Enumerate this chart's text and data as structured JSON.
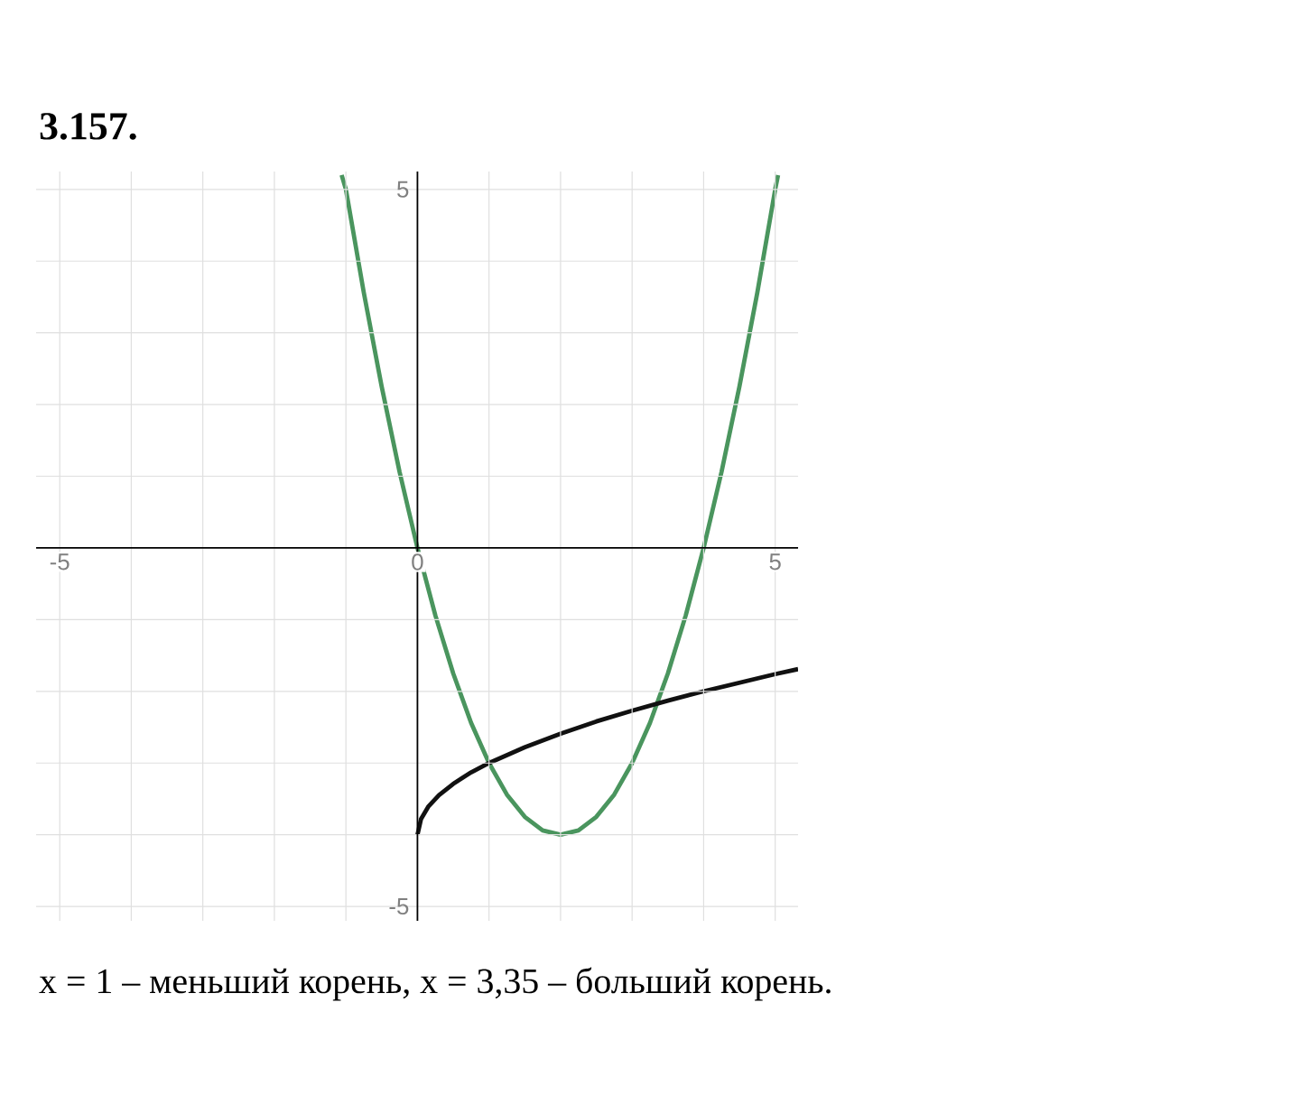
{
  "chart_data": {
    "type": "line",
    "title": "3.157.",
    "annotations": [
      "x = 1 – меньший корень, x = 3,35 – больший корень."
    ],
    "xlim": [
      -5.33,
      5.32
    ],
    "ylim": [
      -5.2,
      5.25
    ],
    "xticks": [
      -5,
      {
        "value": -4,
        "label": null
      },
      {
        "value": -3,
        "label": null
      },
      {
        "value": -2,
        "label": null
      },
      {
        "value": -1,
        "label": null
      },
      0,
      {
        "value": 1,
        "label": null
      },
      {
        "value": 2,
        "label": null
      },
      {
        "value": 3,
        "label": null
      },
      {
        "value": 4,
        "label": null
      },
      5
    ],
    "yticks": [
      -5,
      {
        "value": -4,
        "label": null
      },
      {
        "value": -3,
        "label": null
      },
      {
        "value": -2,
        "label": null
      },
      {
        "value": -1,
        "label": null
      },
      {
        "value": 0,
        "label": null
      },
      {
        "value": 1,
        "label": null
      },
      {
        "value": 2,
        "label": null
      },
      {
        "value": 3,
        "label": null
      },
      {
        "value": 4,
        "label": null
      },
      5
    ],
    "grid": true,
    "marker": "none",
    "line_style": "solid",
    "series": [
      {
        "color": "#4a955e",
        "x": [
          -1.06,
          -1,
          -0.75,
          -0.5,
          -0.25,
          0,
          0.25,
          0.5,
          0.75,
          1,
          1.25,
          1.5,
          1.75,
          2,
          2.25,
          2.5,
          2.75,
          3,
          3.25,
          3.5,
          3.75,
          4,
          4.25,
          4.5,
          4.75,
          5,
          5.04
        ],
        "values": [
          5.2,
          5,
          3.56,
          2.25,
          1.06,
          0,
          -0.94,
          -1.75,
          -2.44,
          -3,
          -3.44,
          -3.75,
          -3.94,
          -4,
          -3.94,
          -3.75,
          -3.44,
          -3,
          -2.44,
          -1.75,
          -0.94,
          0,
          1.06,
          2.25,
          3.56,
          5,
          5.2
        ]
      },
      {
        "color": "#111111",
        "x": [
          0,
          0.05,
          0.15,
          0.3,
          0.5,
          0.75,
          1,
          1.5,
          2,
          2.5,
          3,
          3.5,
          4,
          4.5,
          5,
          5.32
        ],
        "values": [
          -4,
          -3.78,
          -3.61,
          -3.45,
          -3.29,
          -3.13,
          -3,
          -2.78,
          -2.59,
          -2.42,
          -2.27,
          -2.13,
          -2,
          -1.88,
          -1.76,
          -1.69
        ]
      }
    ]
  }
}
